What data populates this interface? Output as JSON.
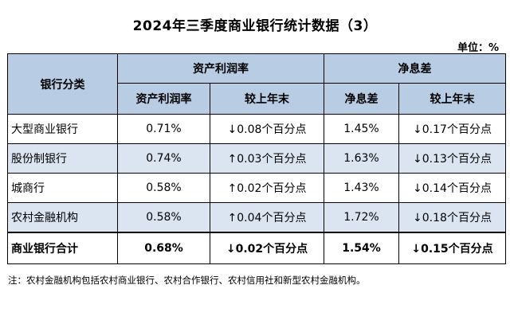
{
  "title": "2024年三季度商业银行统计数据（3）",
  "unit": "单位：%",
  "table": {
    "row_header": "银行分类",
    "groups": [
      {
        "label": "资产利润率",
        "cols": [
          "资产利润率",
          "较上年末"
        ]
      },
      {
        "label": "净息差",
        "cols": [
          "净息差",
          "较上年末"
        ]
      }
    ],
    "rows": [
      {
        "bank": "大型商业银行",
        "roa": "0.71%",
        "roa_change": "↓0.08个百分点",
        "nim": "1.45%",
        "nim_change": "↓0.17个百分点"
      },
      {
        "bank": "股份制银行",
        "roa": "0.74%",
        "roa_change": "↑0.03个百分点",
        "nim": "1.63%",
        "nim_change": "↓0.13个百分点"
      },
      {
        "bank": "城商行",
        "roa": "0.58%",
        "roa_change": "↑0.02个百分点",
        "nim": "1.43%",
        "nim_change": "↓0.14个百分点"
      },
      {
        "bank": "农村金融机构",
        "roa": "0.58%",
        "roa_change": "↑0.04个百分点",
        "nim": "1.72%",
        "nim_change": "↓0.18个百分点"
      }
    ],
    "total": {
      "bank": "商业银行合计",
      "roa": "0.68%",
      "roa_change": "↓0.02个百分点",
      "nim": "1.54%",
      "nim_change": "↓0.15个百分点"
    }
  },
  "note": "注：农村金融机构包括农村商业银行、农村合作银行、农村信用社和新型农村金融机构。",
  "colors": {
    "header_bg": "#b8cce4",
    "stripe_bg": "#dbe5f1",
    "border": "#000000"
  }
}
